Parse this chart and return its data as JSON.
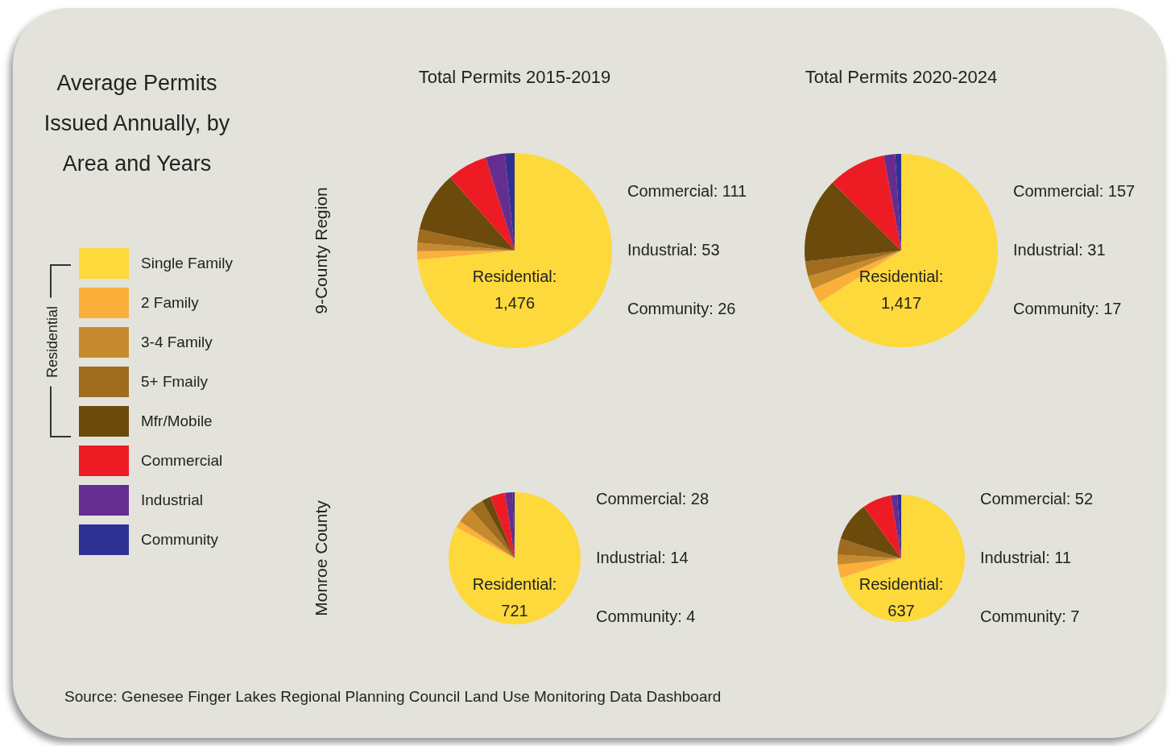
{
  "chart_data": [
    {
      "type": "pie",
      "title": "Total Permits 2015-2019",
      "ylabel": "9-County Region",
      "legend": "left",
      "legend_title": "Residential",
      "categories": [
        "Single Family",
        "2 Family",
        "3-4 Family",
        "5+ Fmaily",
        "Mfr/Mobile",
        "Commercial",
        "Industrial",
        "Community"
      ],
      "values": [
        73.5,
        1.4,
        1.4,
        2.2,
        10.0,
        6.7,
        3.2,
        1.6
      ],
      "colors": [
        "#fdd93b",
        "#fbb03b",
        "#c68a2e",
        "#9e6b1f",
        "#6b4a0c",
        "#ed1c24",
        "#662d91",
        "#2e3192"
      ],
      "annotations": [
        "Residential: 1,476",
        "Commercial: 111",
        "Industrial: 53",
        "Community: 26",
        "Average Permits Issued Annually, by Area and Years"
      ]
    },
    {
      "type": "pie",
      "title": "Total Permits 2020-2024",
      "categories": [
        null,
        null,
        null,
        null,
        null,
        null,
        null,
        null
      ],
      "values": [
        66.0,
        2.5,
        2.2,
        2.5,
        14.2,
        9.7,
        1.9,
        1.0
      ],
      "colors": [
        "#fdd93b",
        "#fbb03b",
        "#c68a2e",
        "#9e6b1f",
        "#6b4a0c",
        "#ed1c24",
        "#662d91",
        "#2e3192"
      ],
      "annotations": [
        "Residential: 1,417",
        "Commercial: 157",
        "Industrial: 31",
        "Community: 17"
      ]
    },
    {
      "type": "pie",
      "ylabel": "Monroe County",
      "categories": [
        null,
        null,
        null,
        null,
        null,
        null,
        null,
        null
      ],
      "values": [
        82.8,
        1.7,
        3.9,
        3.4,
        2.2,
        3.7,
        1.8,
        0.5
      ],
      "colors": [
        "#fdd93b",
        "#fbb03b",
        "#c68a2e",
        "#9e6b1f",
        "#6b4a0c",
        "#ed1c24",
        "#662d91",
        "#2e3192"
      ],
      "annotations": [
        "Residential: 721",
        "Commercial: 28",
        "Industrial: 14",
        "Community: 4",
        "Source: Genesee Finger Lakes Regional Planning Council Land Use Monitoring Data Dashboard"
      ]
    },
    {
      "type": "pie",
      "categories": [
        null,
        null,
        null,
        null,
        null,
        null,
        null,
        null
      ],
      "values": [
        70.0,
        3.4,
        2.5,
        4.1,
        10.0,
        7.4,
        1.6,
        1.0
      ],
      "colors": [
        "#fdd93b",
        "#fbb03b",
        "#c68a2e",
        "#9e6b1f",
        "#6b4a0c",
        "#ed1c24",
        "#662d91",
        "#2e3192"
      ],
      "annotations": [
        "Residential: 637",
        "Commercial: 52",
        "Industrial: 11",
        "Community: 7"
      ]
    }
  ]
}
